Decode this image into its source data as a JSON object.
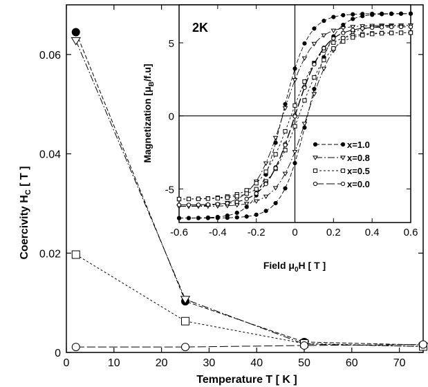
{
  "chart_data": [
    {
      "id": "coercivity",
      "type": "line",
      "xlabel": "Temperature T [ K ]",
      "ylabel_main": "Coercivity H",
      "ylabel_sub": "C",
      "ylabel_tail": " [ T ]",
      "xlim": [
        0,
        75
      ],
      "ylim": [
        0,
        0.07
      ],
      "xticks": [
        0,
        10,
        20,
        30,
        40,
        50,
        60,
        70
      ],
      "yticks": [
        0,
        0.02,
        0.04,
        0.06
      ],
      "ytick_labels": [
        "0",
        "0.02",
        "0.04",
        "0.06"
      ],
      "series": [
        {
          "label": "x=1.0",
          "marker": "filled-circle",
          "dash": "6,3",
          "x": [
            2,
            25,
            50,
            75
          ],
          "y": [
            0.0645,
            0.0103,
            0.0021,
            0.0015
          ]
        },
        {
          "label": "x=0.8",
          "marker": "down-triangle",
          "dash": "10,3,2,3",
          "x": [
            2,
            25,
            50,
            75
          ],
          "y": [
            0.0628,
            0.0107,
            0.0017,
            0.0012
          ]
        },
        {
          "label": "x=0.5",
          "marker": "open-square",
          "dash": "3,3",
          "x": [
            2,
            25,
            50,
            75
          ],
          "y": [
            0.0197,
            0.0063,
            0.0018,
            0.0012
          ]
        },
        {
          "label": "x=0.0",
          "marker": "open-circle",
          "dash": "12,4",
          "x": [
            2,
            25,
            50,
            75
          ],
          "y": [
            0.0011,
            0.0011,
            0.0014,
            0.0016
          ]
        }
      ]
    },
    {
      "id": "magnetization-inset",
      "type": "line",
      "annotation": "2K",
      "xlabel_main": "Field μ",
      "xlabel_sub": "0",
      "xlabel_tail": "H [ T ]",
      "ylabel_main": "Magnetization [μ",
      "ylabel_sub": "B",
      "ylabel_tail": "/f.u]",
      "xlim": [
        -0.6,
        0.6
      ],
      "ylim": [
        -7.3,
        7.6
      ],
      "xticks": [
        -0.6,
        -0.4,
        -0.2,
        0,
        0.2,
        0.4,
        0.6
      ],
      "xtick_labels": [
        "-0.6",
        "-0.4",
        "-0.2",
        "0",
        "0.2",
        "0.4",
        "0.6"
      ],
      "yticks": [
        -5,
        0,
        5
      ],
      "legend_position": "center-right",
      "series": [
        {
          "label": "x=1.0",
          "marker": "filled-circle",
          "dash": "6,3",
          "Ms": 7.0,
          "Hc": 0.065,
          "w": 0.13
        },
        {
          "label": "x=0.8",
          "marker": "down-triangle",
          "dash": "10,3,2,3",
          "Ms": 6.2,
          "Hc": 0.063,
          "w": 0.15
        },
        {
          "label": "x=0.5",
          "marker": "open-square",
          "dash": "3,3",
          "Ms": 5.7,
          "Hc": 0.02,
          "w": 0.16
        },
        {
          "label": "x=0.0",
          "marker": "open-circle",
          "dash": "12,4",
          "Ms": 6.1,
          "Hc": 0.001,
          "w": 0.15
        }
      ]
    }
  ]
}
